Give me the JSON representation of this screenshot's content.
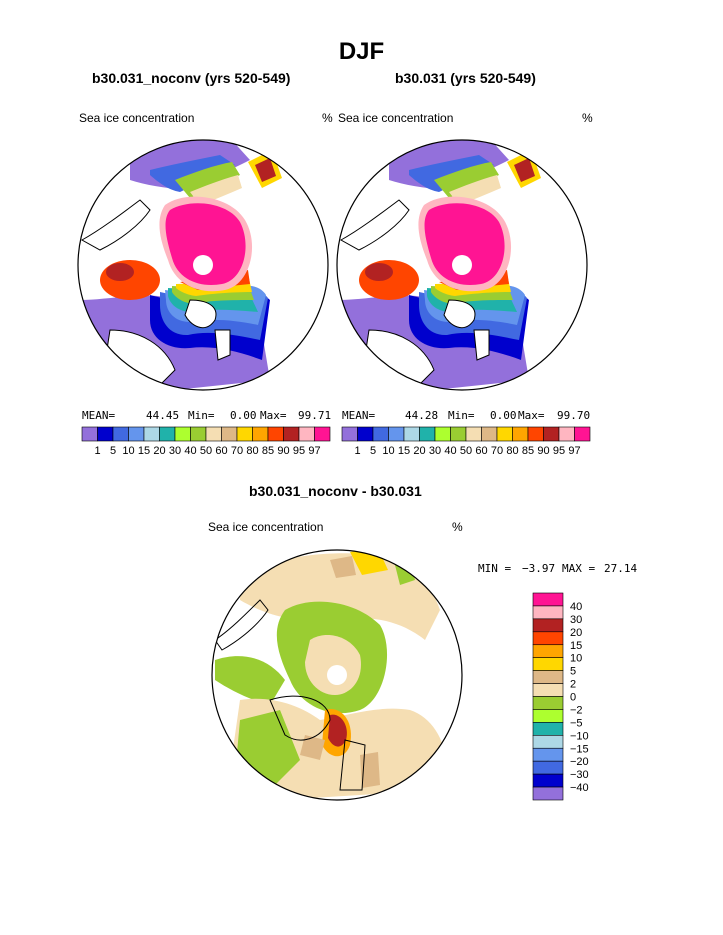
{
  "title": "DJF",
  "chart_data": [
    {
      "type": "heatmap",
      "title": "b30.031_noconv (yrs 520-549)",
      "variable": "Sea ice concentration",
      "units": "%",
      "stats": {
        "mean_label": "MEAN=",
        "mean": "44.45",
        "min_label": "Min=",
        "min": "0.00",
        "max_label": "Max=",
        "max": "99.71"
      },
      "levels": [
        "1",
        "5",
        "10",
        "15",
        "20",
        "30",
        "40",
        "50",
        "60",
        "70",
        "80",
        "85",
        "90",
        "95",
        "97"
      ],
      "colors": [
        "#9370db",
        "#0000cd",
        "#4169e1",
        "#6495ed",
        "#add8e6",
        "#20b2aa",
        "#adff2f",
        "#9acd32",
        "#f5deb3",
        "#deb887",
        "#ffd700",
        "#ffa500",
        "#ff4500",
        "#b22222",
        "#ffb6c1",
        "#ff1493"
      ]
    },
    {
      "type": "heatmap",
      "title": "b30.031 (yrs 520-549)",
      "variable": "Sea ice concentration",
      "units": "%",
      "stats": {
        "mean_label": "MEAN=",
        "mean": "44.28",
        "min_label": "Min=",
        "min": "0.00",
        "max_label": "Max=",
        "max": "99.70"
      },
      "levels": [
        "1",
        "5",
        "10",
        "15",
        "20",
        "30",
        "40",
        "50",
        "60",
        "70",
        "80",
        "85",
        "90",
        "95",
        "97"
      ],
      "colors": [
        "#9370db",
        "#0000cd",
        "#4169e1",
        "#6495ed",
        "#add8e6",
        "#20b2aa",
        "#adff2f",
        "#9acd32",
        "#f5deb3",
        "#deb887",
        "#ffd700",
        "#ffa500",
        "#ff4500",
        "#b22222",
        "#ffb6c1",
        "#ff1493"
      ]
    },
    {
      "type": "heatmap",
      "title": "b30.031_noconv - b30.031",
      "variable": "Sea ice concentration",
      "units": "%",
      "stats": {
        "min_label": "MIN =",
        "min": "−3.97",
        "max_label": "MAX =",
        "max": "27.14"
      },
      "levels": [
        "40",
        "30",
        "20",
        "15",
        "10",
        "5",
        "2",
        "0",
        "−2",
        "−5",
        "−10",
        "−15",
        "−20",
        "−30",
        "−40"
      ],
      "colors": [
        "#ff1493",
        "#ffb6c1",
        "#b22222",
        "#ff4500",
        "#ffa500",
        "#ffd700",
        "#deb887",
        "#f5deb3",
        "#9acd32",
        "#adff2f",
        "#20b2aa",
        "#add8e6",
        "#6495ed",
        "#4169e1",
        "#0000cd",
        "#9370db"
      ]
    }
  ]
}
